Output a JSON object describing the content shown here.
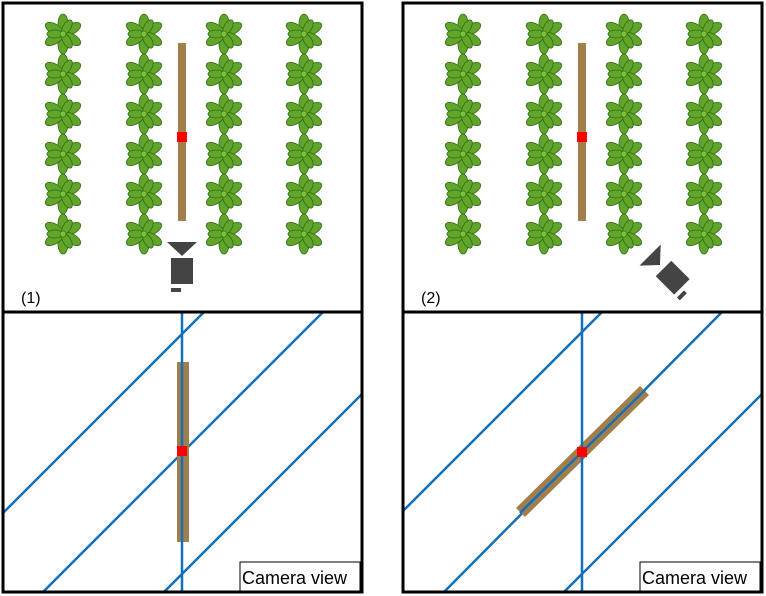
{
  "panels": [
    {
      "id": "1",
      "label": "(1)",
      "camera_view_label": "Camera view",
      "camera": "camera-icon-facing-up"
    },
    {
      "id": "2",
      "label": "(2)",
      "camera_view_label": "Camera view",
      "camera": "camera-icon-rotated"
    }
  ],
  "field": {
    "plant_rows": 4,
    "plants_per_row": 6,
    "plant_icon": "lettuce-plant-icon"
  },
  "colors": {
    "plant": "#62a52a",
    "plant_stroke": "#2d6b13",
    "stake": "#a37e4d",
    "marker": "#ff0000",
    "row_line": "#1170b9",
    "camera": "#444444",
    "frame": "#000000"
  }
}
